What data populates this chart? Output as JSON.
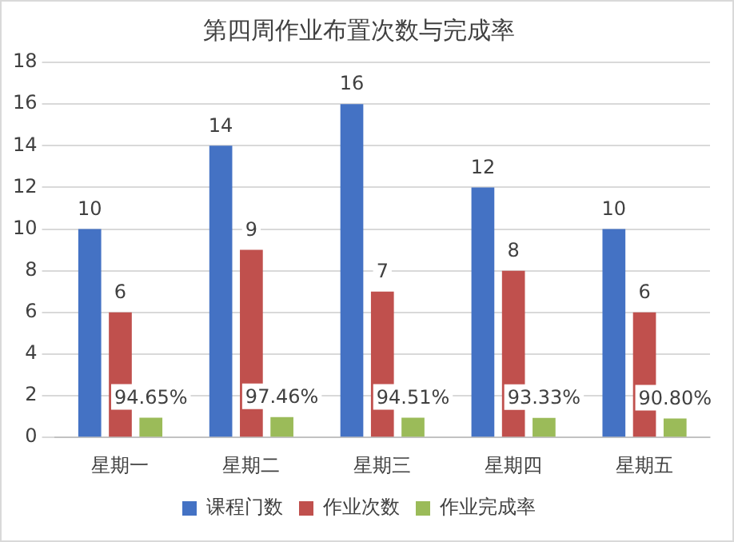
{
  "chart_data": {
    "type": "bar",
    "title": "第四周作业布置次数与完成率",
    "categories": [
      "星期一",
      "星期二",
      "星期三",
      "星期四",
      "星期五"
    ],
    "series": [
      {
        "name": "课程门数",
        "color": "#4472c4",
        "values": [
          10,
          14,
          16,
          12,
          10
        ],
        "value_labels": [
          "10",
          "14",
          "16",
          "12",
          "10"
        ]
      },
      {
        "name": "作业次数",
        "color": "#c0504d",
        "values": [
          6,
          9,
          7,
          8,
          6
        ],
        "value_labels": [
          "6",
          "9",
          "7",
          "8",
          "6"
        ]
      },
      {
        "name": "作业完成率",
        "color": "#9bbb59",
        "values": [
          0.9465,
          0.9746,
          0.9451,
          0.9333,
          0.908
        ],
        "value_labels": [
          "94.65%",
          "97.46%",
          "94.51%",
          "93.33%",
          "90.80%"
        ]
      }
    ],
    "ylim": [
      0,
      18
    ],
    "yticks": [
      0,
      2,
      4,
      6,
      8,
      10,
      12,
      14,
      16,
      18
    ],
    "grid": "y",
    "legend": "bottom"
  }
}
